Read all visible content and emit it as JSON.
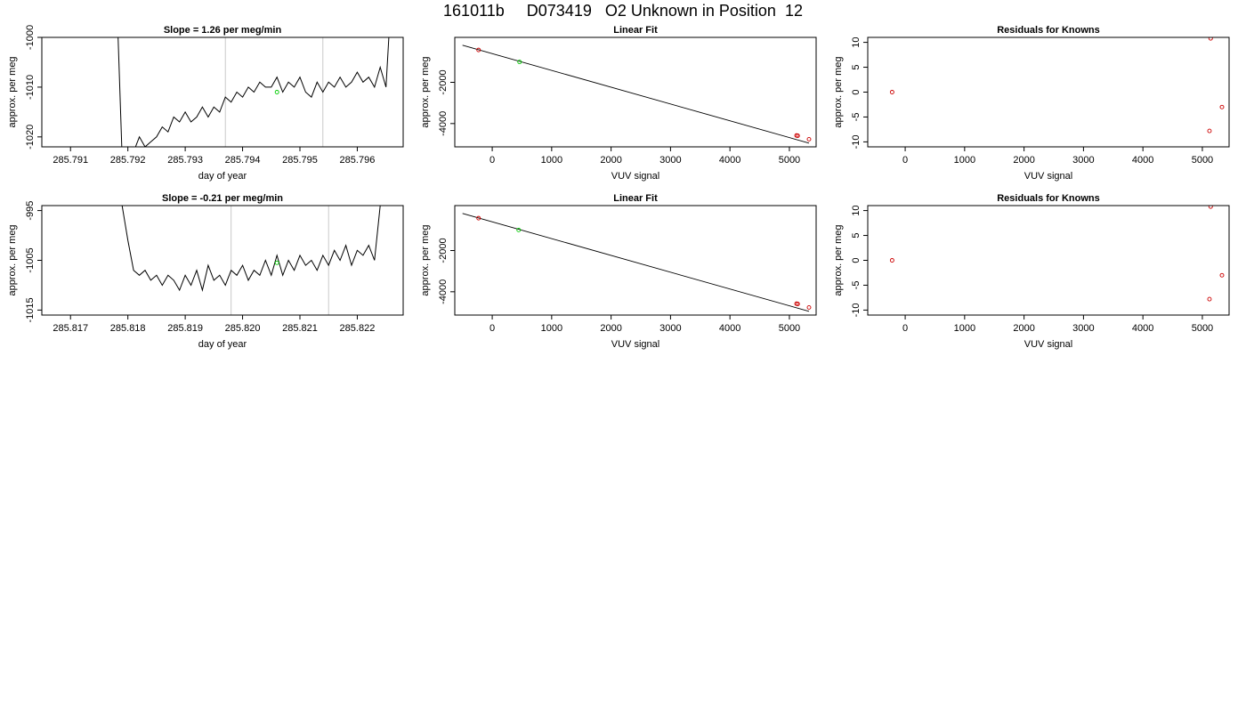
{
  "page": {
    "title": "161011b     D073419   O2 Unknown in Position  12"
  },
  "chart_data": [
    {
      "type": "line",
      "panel": "trace-1",
      "title": "Slope =  1.26  per meg/min",
      "xlabel": "day of year",
      "ylabel": "approx. per meg",
      "xlim": [
        285.7905,
        285.7968
      ],
      "ylim": [
        -1022,
        -1000
      ],
      "xticks": [
        285.791,
        285.792,
        285.793,
        285.794,
        285.795,
        285.796
      ],
      "xtick_labels": [
        "285.791",
        "285.792",
        "285.793",
        "285.794",
        "285.795",
        "285.796"
      ],
      "yticks": [
        -1020,
        -1010,
        -1000
      ],
      "ytick_labels": [
        "-1020",
        "-1010",
        "-1000"
      ],
      "vlines": [
        285.7937,
        285.7954
      ],
      "series": [
        {
          "x": [
            285.7918,
            285.7919,
            285.792,
            285.7921,
            285.7922,
            285.7923,
            285.7924,
            285.7925,
            285.7926,
            285.7927,
            285.7928,
            285.7929,
            285.793,
            285.7931,
            285.7932,
            285.7933,
            285.7934,
            285.7935,
            285.7936,
            285.7937,
            285.7938,
            285.7939,
            285.794,
            285.7941,
            285.7942,
            285.7943,
            285.7944,
            285.7945,
            285.7946,
            285.7947,
            285.7948,
            285.7949,
            285.795,
            285.7951,
            285.7952,
            285.7953,
            285.7954,
            285.7955,
            285.7956,
            285.7957,
            285.7958,
            285.7959,
            285.796,
            285.7961,
            285.7962,
            285.7963,
            285.7964,
            285.7965,
            285.7966
          ],
          "values": [
            -990,
            -1024,
            -1022,
            -1023,
            -1020,
            -1022,
            -1021,
            -1020,
            -1018,
            -1019,
            -1016,
            -1017,
            -1015,
            -1017,
            -1016,
            -1014,
            -1016,
            -1014,
            -1015,
            -1012,
            -1013,
            -1011,
            -1012,
            -1010,
            -1011,
            -1009,
            -1010,
            -1010,
            -1008,
            -1011,
            -1009,
            -1010,
            -1008,
            -1011,
            -1012,
            -1009,
            -1011,
            -1009,
            -1010,
            -1008,
            -1010,
            -1009,
            -1007,
            -1009,
            -1008,
            -1010,
            -1006,
            -1010,
            -990
          ]
        }
      ],
      "points": [
        {
          "x": 285.7946,
          "y": -1011,
          "color": "#00cc00"
        }
      ]
    },
    {
      "type": "line",
      "panel": "fit-1",
      "title": "Linear Fit",
      "xlabel": "VUV signal",
      "ylabel": "approx. per meg",
      "xlim": [
        -630,
        5450
      ],
      "ylim": [
        -5130,
        180
      ],
      "xticks": [
        0,
        1000,
        2000,
        3000,
        4000,
        5000
      ],
      "xtick_labels": [
        "0",
        "1000",
        "2000",
        "3000",
        "4000",
        "5000"
      ],
      "yticks": [
        -4000,
        -2000
      ],
      "ytick_labels": [
        "-4000",
        "-2000"
      ],
      "line": {
        "x": [
          -500,
          5330
        ],
        "y": [
          -200,
          -4950
        ]
      },
      "points": [
        {
          "x": -230,
          "y": -430,
          "color": "#cc0000"
        },
        {
          "x": 460,
          "y": -1011,
          "color": "#00cc00"
        },
        {
          "x": 5120,
          "y": -4580,
          "color": "#cc0000"
        },
        {
          "x": 5140,
          "y": -4590,
          "color": "#cc0000"
        },
        {
          "x": 5330,
          "y": -4760,
          "color": "#cc0000"
        }
      ]
    },
    {
      "type": "scatter",
      "panel": "resid-1",
      "title": "Residuals for Knowns",
      "xlabel": "VUV signal",
      "ylabel": "approx. per meg",
      "xlim": [
        -630,
        5450
      ],
      "ylim": [
        -11,
        11
      ],
      "xticks": [
        0,
        1000,
        2000,
        3000,
        4000,
        5000
      ],
      "xtick_labels": [
        "0",
        "1000",
        "2000",
        "3000",
        "4000",
        "5000"
      ],
      "yticks": [
        -10,
        -5,
        0,
        5,
        10
      ],
      "ytick_labels": [
        "-10",
        "-5",
        "0",
        "5",
        "10"
      ],
      "points": [
        {
          "x": -220,
          "y": 0,
          "color": "#cc0000"
        },
        {
          "x": 5140,
          "y": 10.8,
          "color": "#cc0000"
        },
        {
          "x": 5120,
          "y": -7.8,
          "color": "#cc0000"
        },
        {
          "x": 5330,
          "y": -3.0,
          "color": "#cc0000"
        }
      ]
    },
    {
      "type": "line",
      "panel": "trace-2",
      "title": "Slope =  -0.21  per meg/min",
      "xlabel": "day of year",
      "ylabel": "approx. per meg",
      "xlim": [
        285.8165,
        285.8228
      ],
      "ylim": [
        -1016,
        -994
      ],
      "xticks": [
        285.817,
        285.818,
        285.819,
        285.82,
        285.821,
        285.822
      ],
      "xtick_labels": [
        "285.817",
        "285.818",
        "285.819",
        "285.820",
        "285.821",
        "285.822"
      ],
      "yticks": [
        -1015,
        -1005,
        -995
      ],
      "ytick_labels": [
        "-1015",
        "-1005",
        "-995"
      ],
      "vlines": [
        285.8198,
        285.8215
      ],
      "series": [
        {
          "x": [
            285.8179,
            285.818,
            285.8181,
            285.8182,
            285.8183,
            285.8184,
            285.8185,
            285.8186,
            285.8187,
            285.8188,
            285.8189,
            285.819,
            285.8191,
            285.8192,
            285.8193,
            285.8194,
            285.8195,
            285.8196,
            285.8197,
            285.8198,
            285.8199,
            285.82,
            285.8201,
            285.8202,
            285.8203,
            285.8204,
            285.8205,
            285.8206,
            285.8207,
            285.8208,
            285.8209,
            285.821,
            285.8211,
            285.8212,
            285.8213,
            285.8214,
            285.8215,
            285.8216,
            285.8217,
            285.8218,
            285.8219,
            285.822,
            285.8221,
            285.8222,
            285.8223,
            285.8224
          ],
          "values": [
            -994,
            -1001,
            -1007,
            -1008,
            -1007,
            -1009,
            -1008,
            -1010,
            -1008,
            -1009,
            -1011,
            -1008,
            -1010,
            -1007,
            -1011,
            -1006,
            -1009,
            -1008,
            -1010,
            -1007,
            -1008,
            -1006,
            -1009,
            -1007,
            -1008,
            -1005,
            -1008,
            -1004,
            -1008,
            -1005,
            -1007,
            -1004,
            -1006,
            -1005,
            -1007,
            -1004,
            -1006,
            -1003,
            -1005,
            -1002,
            -1006,
            -1003,
            -1004,
            -1002,
            -1005,
            -994
          ]
        }
      ],
      "points": [
        {
          "x": 285.8206,
          "y": -1005.5,
          "color": "#00cc00"
        }
      ]
    },
    {
      "type": "line",
      "panel": "fit-2",
      "title": "Linear Fit",
      "xlabel": "VUV signal",
      "ylabel": "approx. per meg",
      "xlim": [
        -630,
        5450
      ],
      "ylim": [
        -5130,
        180
      ],
      "xticks": [
        0,
        1000,
        2000,
        3000,
        4000,
        5000
      ],
      "xtick_labels": [
        "0",
        "1000",
        "2000",
        "3000",
        "4000",
        "5000"
      ],
      "yticks": [
        -4000,
        -2000
      ],
      "ytick_labels": [
        "-4000",
        "-2000"
      ],
      "line": {
        "x": [
          -500,
          5330
        ],
        "y": [
          -200,
          -4950
        ]
      },
      "points": [
        {
          "x": -230,
          "y": -430,
          "color": "#cc0000"
        },
        {
          "x": 445,
          "y": -1005,
          "color": "#00cc00"
        },
        {
          "x": 5120,
          "y": -4580,
          "color": "#cc0000"
        },
        {
          "x": 5140,
          "y": -4590,
          "color": "#cc0000"
        },
        {
          "x": 5330,
          "y": -4760,
          "color": "#cc0000"
        }
      ]
    },
    {
      "type": "scatter",
      "panel": "resid-2",
      "title": "Residuals for Knowns",
      "xlabel": "VUV signal",
      "ylabel": "approx. per meg",
      "xlim": [
        -630,
        5450
      ],
      "ylim": [
        -11,
        11
      ],
      "xticks": [
        0,
        1000,
        2000,
        3000,
        4000,
        5000
      ],
      "xtick_labels": [
        "0",
        "1000",
        "2000",
        "3000",
        "4000",
        "5000"
      ],
      "yticks": [
        -10,
        -5,
        0,
        5,
        10
      ],
      "ytick_labels": [
        "-10",
        "-5",
        "0",
        "5",
        "10"
      ],
      "points": [
        {
          "x": -220,
          "y": 0,
          "color": "#cc0000"
        },
        {
          "x": 5140,
          "y": 10.8,
          "color": "#cc0000"
        },
        {
          "x": 5120,
          "y": -7.8,
          "color": "#cc0000"
        },
        {
          "x": 5330,
          "y": -3.0,
          "color": "#cc0000"
        }
      ]
    }
  ]
}
